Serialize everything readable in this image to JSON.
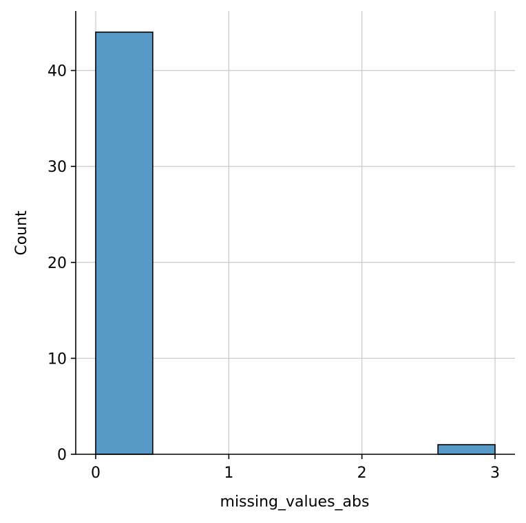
{
  "chart_data": {
    "type": "bar",
    "subtype": "histogram",
    "xlabel": "missing_values_abs",
    "ylabel": "Count",
    "xlim": [
      -0.15,
      3.15
    ],
    "ylim": [
      0,
      46.2
    ],
    "x_ticks": [
      0,
      1,
      2,
      3
    ],
    "x_tick_labels": [
      "0",
      "1",
      "2",
      "3"
    ],
    "y_ticks": [
      0,
      10,
      20,
      30,
      40
    ],
    "y_tick_labels": [
      "0",
      "10",
      "20",
      "30",
      "40"
    ],
    "grid": true,
    "legend": "none",
    "bins": [
      {
        "x0": 0.0,
        "x1": 0.4286,
        "count": 44
      },
      {
        "x0": 0.4286,
        "x1": 0.8571,
        "count": 0
      },
      {
        "x0": 0.8571,
        "x1": 1.2857,
        "count": 0
      },
      {
        "x0": 1.2857,
        "x1": 1.7143,
        "count": 0
      },
      {
        "x0": 1.7143,
        "x1": 2.1429,
        "count": 0
      },
      {
        "x0": 2.1429,
        "x1": 2.5714,
        "count": 0
      },
      {
        "x0": 2.5714,
        "x1": 3.0,
        "count": 1
      }
    ],
    "colors": {
      "bar_fill": "#5799c7",
      "bar_edge": "#000000",
      "grid": "#cccccc",
      "axis": "#000000"
    }
  }
}
